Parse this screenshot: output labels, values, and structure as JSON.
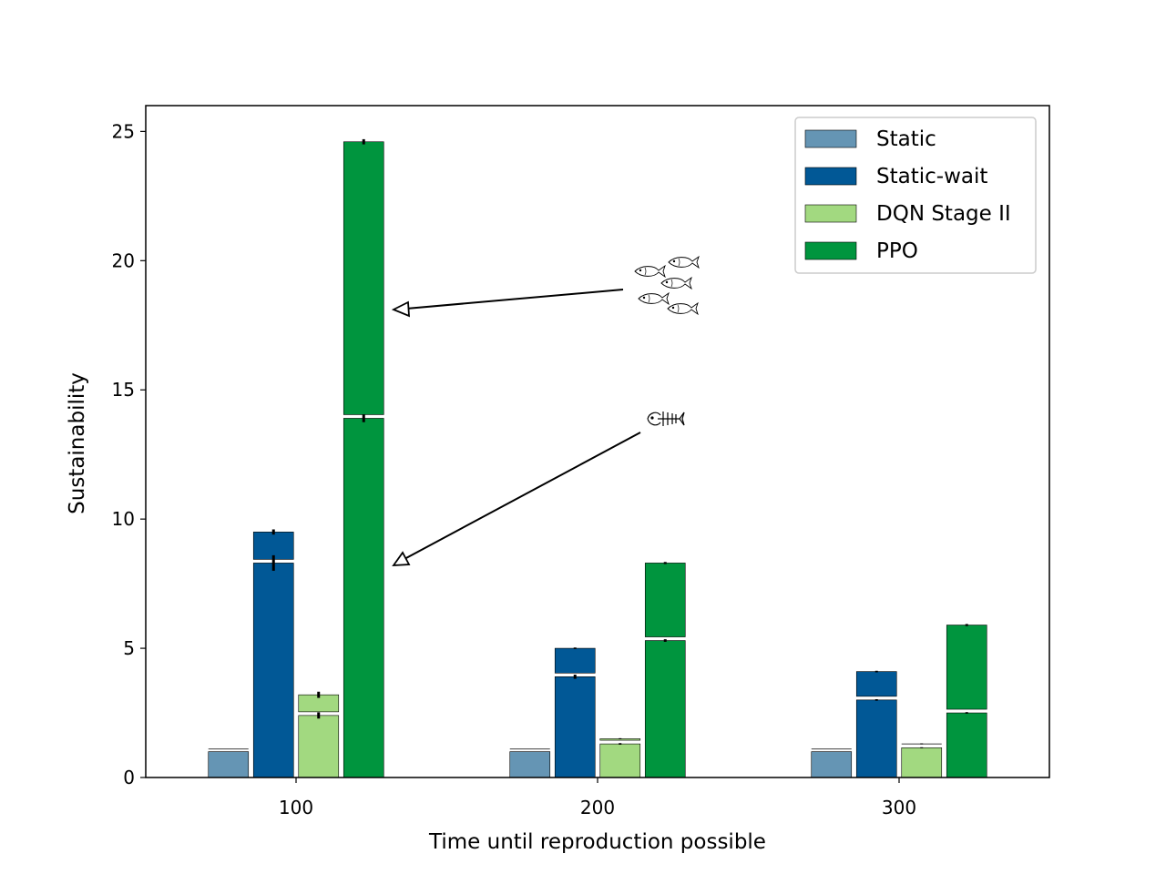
{
  "chart_data": {
    "type": "bar",
    "xlabel": "Time until reproduction possible",
    "ylabel": "Sustainability",
    "ylim": [
      0,
      26
    ],
    "yticks": [
      0,
      5,
      10,
      15,
      20,
      25
    ],
    "categories": [
      "100",
      "200",
      "300"
    ],
    "grid": false,
    "legend_placement": "top-right",
    "note": "Stacked bars: lower segment = fish-bone outcome, upper segment = fish-school outcome",
    "series": [
      {
        "name": "Static",
        "color": "#6595b4",
        "lower": [
          1.0,
          1.0,
          1.0
        ],
        "lower_err": [
          0.0,
          0.0,
          0.0
        ],
        "upper": [
          1.1,
          1.1,
          1.1
        ],
        "upper_err": [
          0.0,
          0.0,
          0.0
        ]
      },
      {
        "name": "Static-wait",
        "color": "#015896",
        "lower": [
          8.3,
          3.9,
          3.0
        ],
        "lower_err": [
          0.3,
          0.08,
          0.03
        ],
        "upper": [
          9.5,
          5.0,
          4.1
        ],
        "upper_err": [
          0.1,
          0.03,
          0.03
        ]
      },
      {
        "name": "DQN Stage II",
        "color": "#a2d980",
        "lower": [
          2.4,
          1.3,
          1.15
        ],
        "lower_err": [
          0.12,
          0.03,
          0.02
        ],
        "upper": [
          3.2,
          1.5,
          1.3
        ],
        "upper_err": [
          0.12,
          0.02,
          0.02
        ]
      },
      {
        "name": "PPO",
        "color": "#00953e",
        "lower": [
          13.9,
          5.3,
          2.5
        ],
        "lower_err": [
          0.15,
          0.05,
          0.03
        ],
        "upper": [
          24.6,
          8.3,
          5.9
        ],
        "upper_err": [
          0.1,
          0.04,
          0.04
        ]
      }
    ],
    "annotations": [
      {
        "icon": "fish-school-icon",
        "points_to": "PPO upper segment at 100",
        "y": 18
      },
      {
        "icon": "fish-bone-icon",
        "points_to": "PPO lower segment at 100",
        "y": 8.2
      }
    ]
  }
}
